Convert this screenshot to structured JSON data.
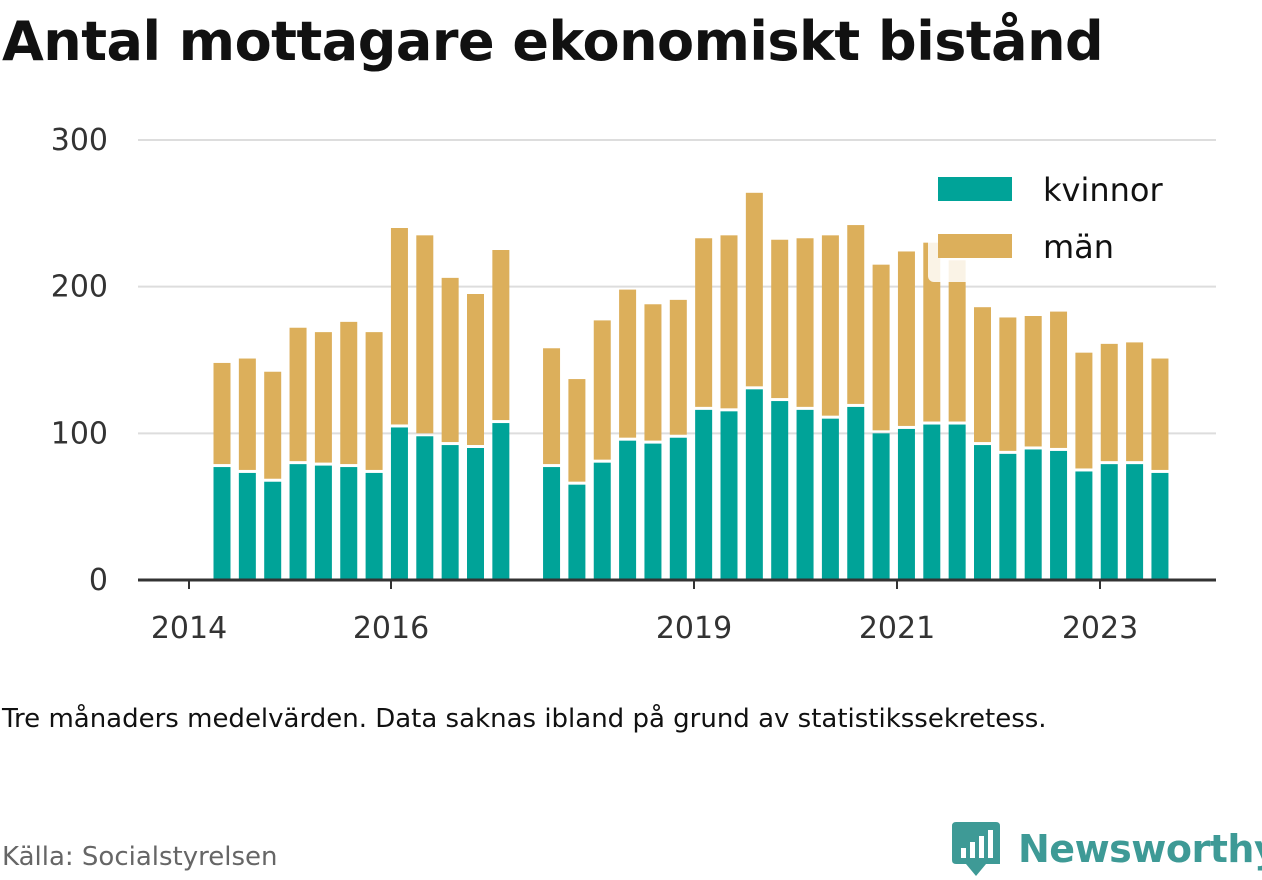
{
  "title": "Antal mottagare ekonomiskt bistånd",
  "note": "Tre månaders medelvärden. Data saknas ibland på grund av statistikssekretess.",
  "source": "Källa: Socialstyrelsen",
  "brand": {
    "name": "Newsworthy",
    "icon": "newsworthy-logo-icon",
    "color": "#3e9a96"
  },
  "colors": {
    "kvinnor": "#00a398",
    "man": "#dcaf5b",
    "grid": "#dddddd",
    "axis": "#333333"
  },
  "chart_data": {
    "type": "bar",
    "stacked": true,
    "ylim": [
      0,
      300
    ],
    "yticks": [
      "0",
      "100",
      "200",
      "300"
    ],
    "xticks": [
      "2014",
      "2016",
      "2019",
      "2021",
      "2023"
    ],
    "legend": [
      "kvinnor",
      "män"
    ],
    "legend_position": "top-right",
    "grid": true,
    "series": [
      {
        "name": "kvinnor",
        "values": [
          77,
          73,
          67,
          79,
          78,
          77,
          73,
          104,
          98,
          92,
          90,
          107,
          null,
          77,
          65,
          80,
          95,
          93,
          97,
          116,
          115,
          130,
          122,
          116,
          110,
          118,
          100,
          103,
          106,
          106,
          92,
          86,
          89,
          88,
          74,
          79,
          79,
          73
        ]
      },
      {
        "name": "män",
        "values": [
          71,
          78,
          75,
          93,
          91,
          99,
          96,
          136,
          137,
          114,
          105,
          118,
          null,
          81,
          72,
          97,
          103,
          95,
          94,
          117,
          120,
          134,
          110,
          117,
          125,
          124,
          115,
          121,
          124,
          112,
          94,
          93,
          91,
          95,
          81,
          82,
          83,
          78
        ]
      }
    ]
  }
}
